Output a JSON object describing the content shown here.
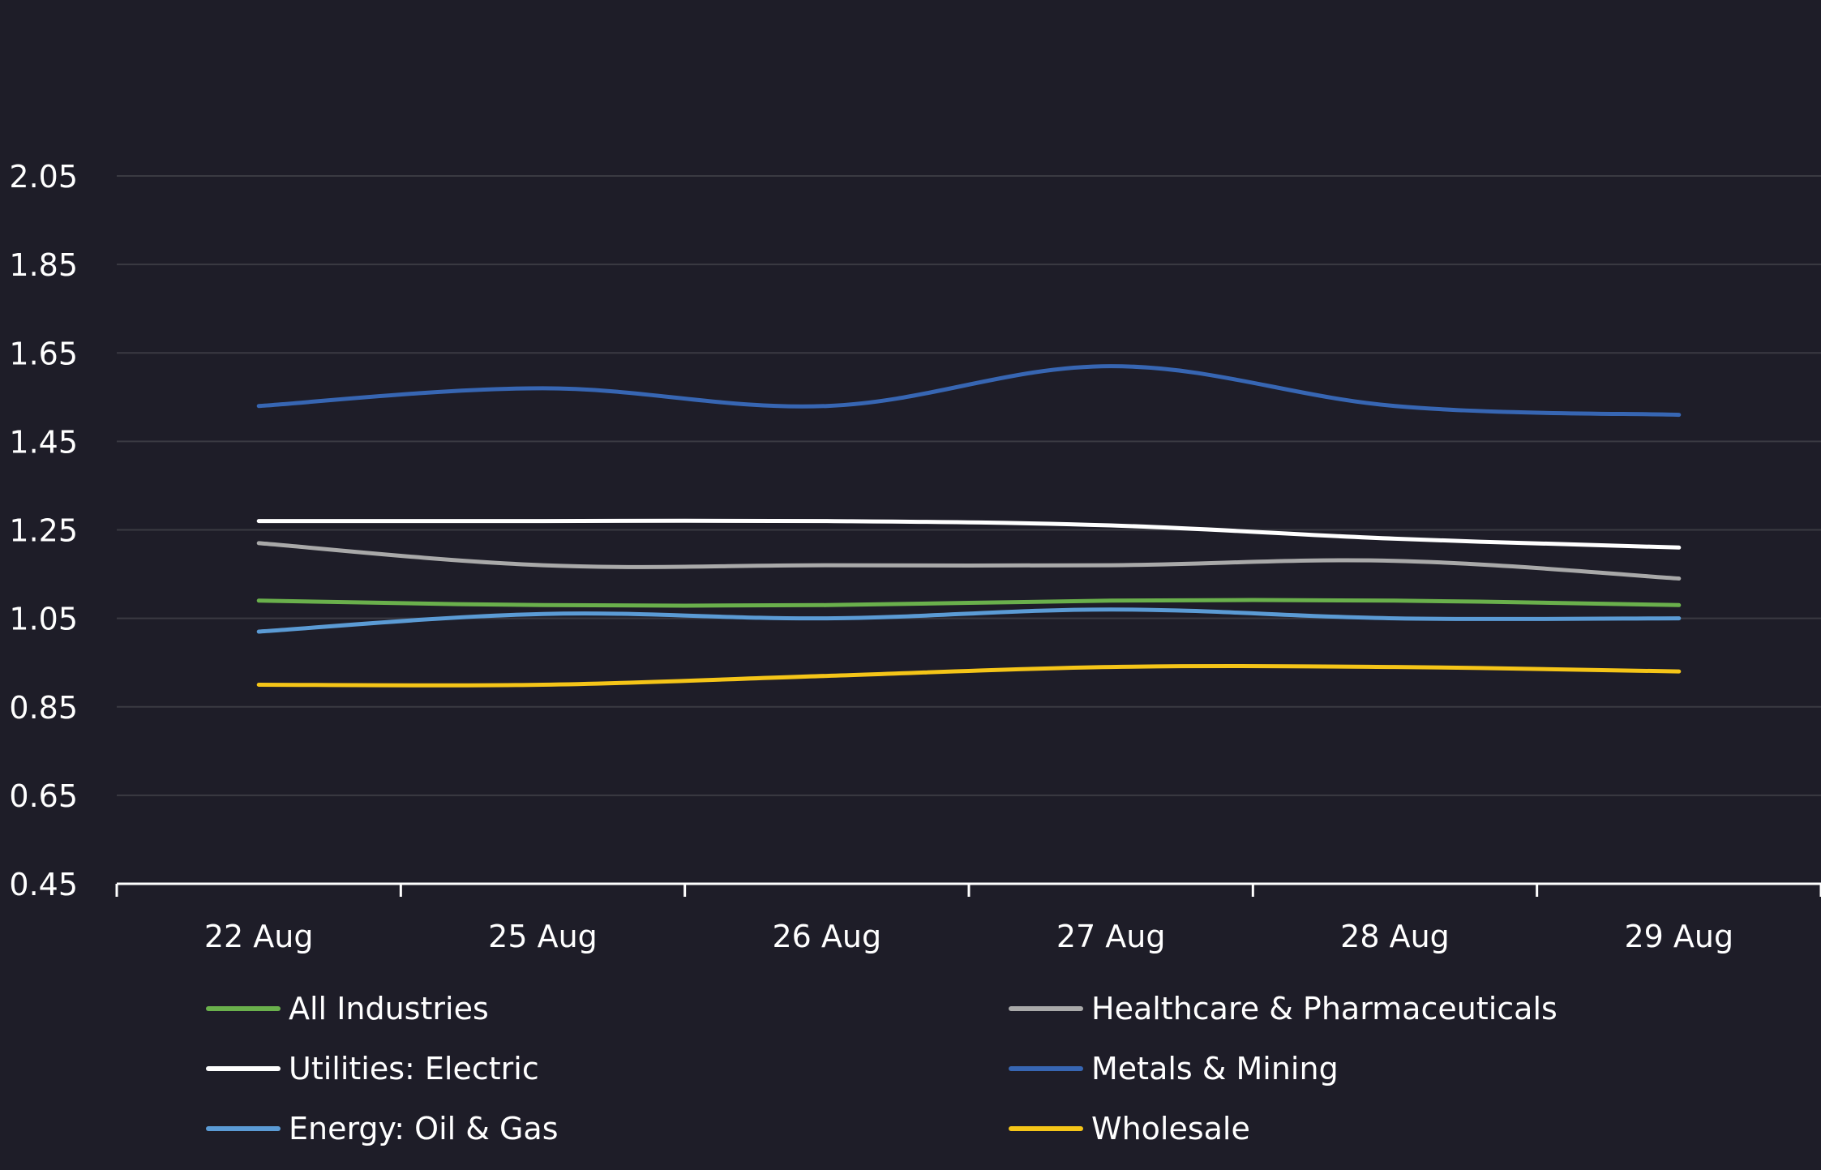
{
  "chart_data": {
    "type": "line",
    "title": "",
    "xlabel": "",
    "ylabel": "",
    "categories": [
      "22 Aug",
      "25 Aug",
      "26 Aug",
      "27 Aug",
      "28 Aug",
      "29 Aug"
    ],
    "yticks": [
      "0.45",
      "0.65",
      "0.85",
      "1.05",
      "1.25",
      "1.45",
      "1.65",
      "1.85",
      "2.05"
    ],
    "ylim": [
      0.45,
      2.05
    ],
    "grid": true,
    "legend_position": "bottom",
    "series": [
      {
        "name": "All Industries",
        "color": "#6ab04c",
        "values": [
          1.09,
          1.08,
          1.08,
          1.09,
          1.09,
          1.08
        ]
      },
      {
        "name": "Healthcare & Pharmaceuticals",
        "color": "#a9a9a9",
        "values": [
          1.22,
          1.17,
          1.17,
          1.17,
          1.18,
          1.14
        ]
      },
      {
        "name": "Utilities: Electric",
        "color": "#ffffff",
        "values": [
          1.27,
          1.27,
          1.27,
          1.26,
          1.23,
          1.21
        ]
      },
      {
        "name": "Metals & Mining",
        "color": "#3766b3",
        "values": [
          1.53,
          1.57,
          1.53,
          1.62,
          1.53,
          1.51
        ]
      },
      {
        "name": "Energy: Oil & Gas",
        "color": "#5b9bd5",
        "values": [
          1.02,
          1.06,
          1.05,
          1.07,
          1.05,
          1.05
        ]
      },
      {
        "name": "Wholesale",
        "color": "#f5c518",
        "values": [
          0.9,
          0.9,
          0.92,
          0.94,
          0.94,
          0.93
        ]
      }
    ]
  }
}
